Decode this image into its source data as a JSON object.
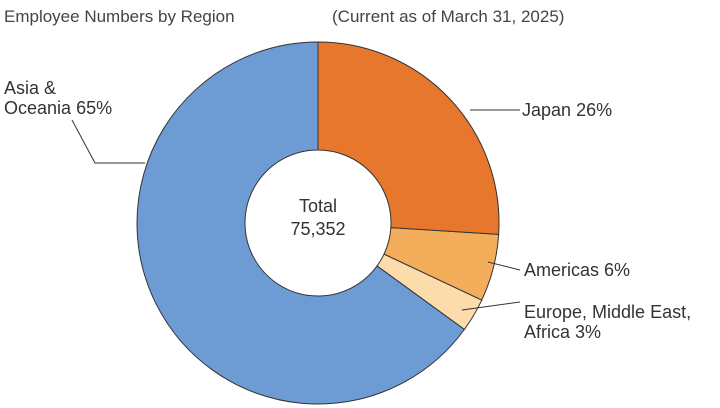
{
  "chart_data": {
    "type": "donut",
    "title": "Employee Numbers by Region",
    "subtitle": "(Current as of March 31, 2025)",
    "categories": [
      "Japan",
      "Americas",
      "Europe, Middle East, Africa",
      "Asia & Oceania"
    ],
    "values": [
      26,
      6,
      3,
      65
    ],
    "value_labels": [
      "26%",
      "6%",
      "3%",
      "65%"
    ],
    "colors": [
      "#e8772e",
      "#f4ad5a",
      "#fbdcaa",
      "#6d9bd4"
    ],
    "center_label": "Total",
    "total": 75352,
    "total_label": "75,352"
  }
}
